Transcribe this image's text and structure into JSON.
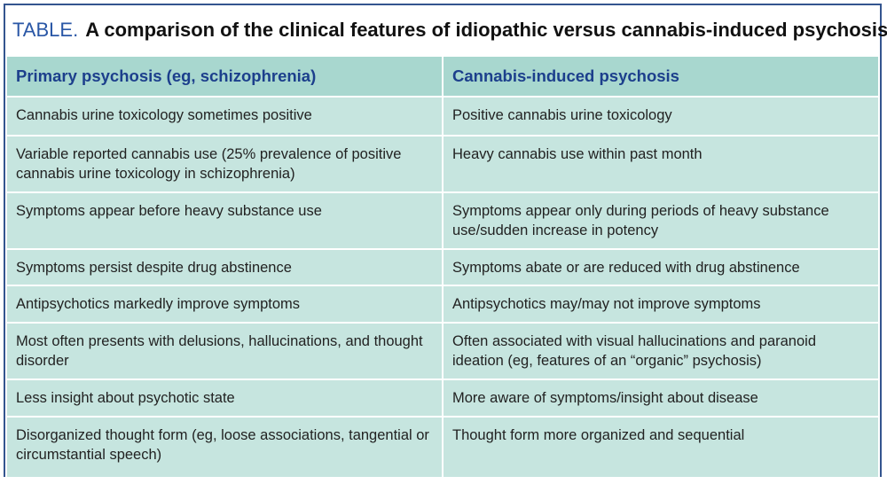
{
  "header": {
    "label": "TABLE.",
    "title": "A comparison of the clinical features of idiopathic versus cannabis-induced psychosis"
  },
  "table": {
    "columns": [
      "Primary psychosis (eg, schizophrenia)",
      "Cannabis-induced psychosis"
    ],
    "rows": [
      [
        "Cannabis urine toxicology sometimes positive",
        "Positive cannabis urine toxicology"
      ],
      [
        "Variable reported cannabis use (25% prevalence of positive cannabis urine toxicology in schizophrenia)",
        "Heavy cannabis use within past month"
      ],
      [
        "Symptoms appear before heavy substance use",
        "Symptoms appear only during periods of heavy substance use/sudden increase in potency"
      ],
      [
        "Symptoms persist despite drug abstinence",
        "Symptoms abate or are reduced with drug abstinence"
      ],
      [
        "Antipsychotics markedly improve symptoms",
        "Antipsychotics may/may not improve symptoms"
      ],
      [
        "Most often presents with delusions, hallucinations, and thought disorder",
        "Often associated with visual hallucinations and paranoid ideation (eg, features of an “organic” psychosis)"
      ],
      [
        "Less insight about psychotic state",
        "More aware of symptoms/insight about disease"
      ],
      [
        "Disorganized thought form (eg, loose associations, tangential or circumstantial speech)",
        "Thought form more organized and sequential"
      ]
    ]
  }
}
